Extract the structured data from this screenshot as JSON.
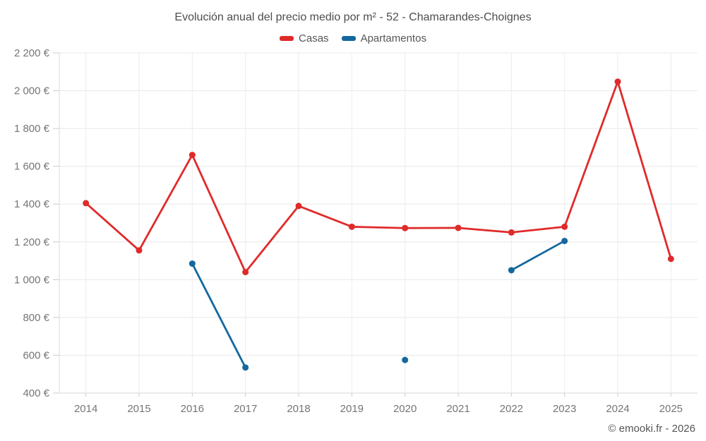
{
  "footer": {
    "copyright": "© emooki.fr - 2026"
  },
  "chart_data": {
    "type": "line",
    "title": "Evolución anual del precio medio por m² - 52 - Chamarandes-Choignes",
    "categories": [
      "2014",
      "2015",
      "2016",
      "2017",
      "2018",
      "2019",
      "2020",
      "2021",
      "2022",
      "2023",
      "2024",
      "2025"
    ],
    "series": [
      {
        "name": "Casas",
        "color": "#e02a2a",
        "values": [
          1405,
          1155,
          1660,
          1040,
          1390,
          1280,
          1273,
          1274,
          1250,
          1280,
          2048,
          1110
        ]
      },
      {
        "name": "Apartamentos",
        "color": "#14689e",
        "values": [
          null,
          null,
          1085,
          535,
          null,
          null,
          575,
          null,
          1050,
          1205,
          null,
          null
        ]
      }
    ],
    "xlabel": "",
    "ylabel": "",
    "ylim": [
      400,
      2200
    ],
    "ytick_values": [
      400,
      600,
      800,
      1000,
      1200,
      1400,
      1600,
      1800,
      2000,
      2200
    ],
    "ytick_labels": [
      "400 €",
      "600 €",
      "800 €",
      "1 000 €",
      "1 200 €",
      "1 400 €",
      "1 600 €",
      "1 800 €",
      "2 000 €",
      "2 200 €"
    ],
    "grid": true,
    "legend_position": "top"
  }
}
